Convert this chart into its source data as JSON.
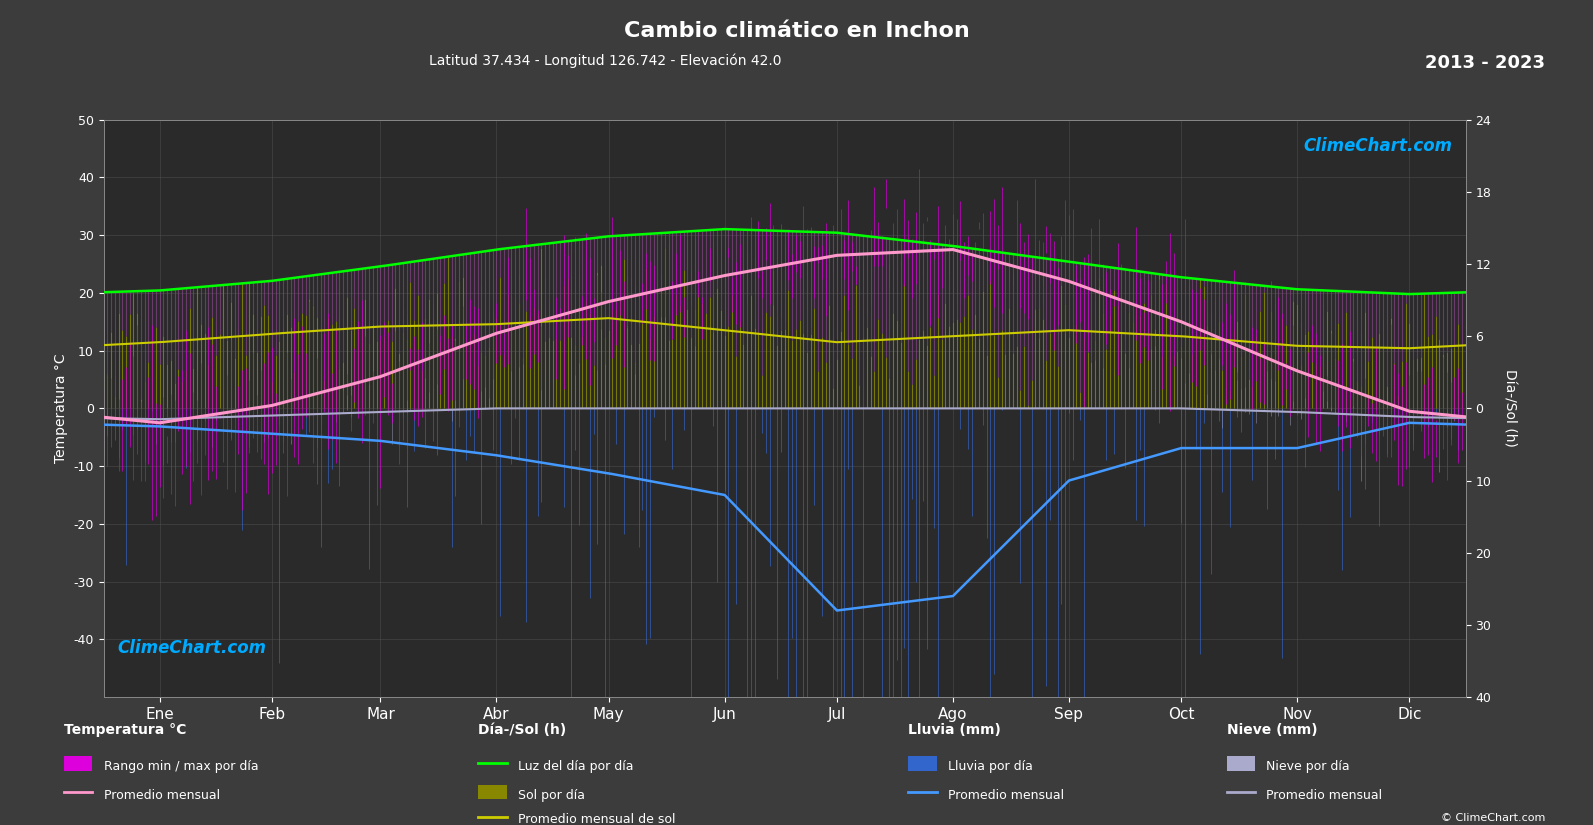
{
  "title": "Cambio climático en Inchon",
  "subtitle": "Latitud 37.434 - Longitud 126.742 - Elevación 42.0",
  "year_range": "2013 - 2023",
  "background_color": "#3c3c3c",
  "plot_bg_color": "#2a2a2a",
  "months": [
    "Ene",
    "Feb",
    "Mar",
    "Abr",
    "May",
    "Jun",
    "Jul",
    "Ago",
    "Sep",
    "Oct",
    "Nov",
    "Dic"
  ],
  "temp_ylim": [
    -50,
    50
  ],
  "temp_avg_monthly": [
    -2.5,
    0.5,
    5.5,
    13.0,
    18.5,
    23.0,
    26.5,
    27.5,
    22.0,
    15.0,
    6.5,
    -0.5
  ],
  "temp_min_monthly": [
    -11.0,
    -8.0,
    -2.0,
    6.0,
    12.0,
    17.5,
    22.0,
    23.0,
    16.0,
    7.5,
    -0.5,
    -7.5
  ],
  "temp_max_monthly": [
    4.5,
    7.5,
    13.0,
    19.5,
    24.5,
    28.0,
    30.5,
    31.5,
    27.5,
    21.5,
    12.0,
    6.0
  ],
  "daylight_monthly": [
    9.8,
    10.6,
    11.8,
    13.2,
    14.3,
    14.9,
    14.6,
    13.5,
    12.2,
    10.9,
    9.9,
    9.5
  ],
  "sunshine_monthly": [
    5.5,
    6.2,
    6.8,
    7.0,
    7.5,
    6.5,
    5.5,
    6.0,
    6.5,
    6.0,
    5.2,
    5.0
  ],
  "rain_monthly_mm": [
    25,
    35,
    45,
    65,
    90,
    120,
    280,
    260,
    100,
    55,
    55,
    20
  ],
  "snow_monthly_mm": [
    15,
    10,
    5,
    0,
    0,
    0,
    0,
    0,
    0,
    0,
    5,
    12
  ],
  "daylight_color": "#00ff00",
  "sunshine_fill_color": "#888800",
  "daylight_fill_color": "#8844aa",
  "temp_bar_color": "#aa00aa",
  "temp_avg_color": "#ff99cc",
  "rain_color": "#3366cc",
  "snow_color": "#9999bb",
  "rain_avg_color": "#4499ff",
  "snow_avg_color": "#aaaacc",
  "sunshine_avg_color": "#cccc00",
  "grid_color": "#555555",
  "text_color": "#ffffff",
  "right_axis_top_ticks": [
    0,
    6,
    12,
    18,
    24
  ],
  "right_axis_bottom_ticks": [
    0,
    10,
    20,
    30,
    40
  ]
}
